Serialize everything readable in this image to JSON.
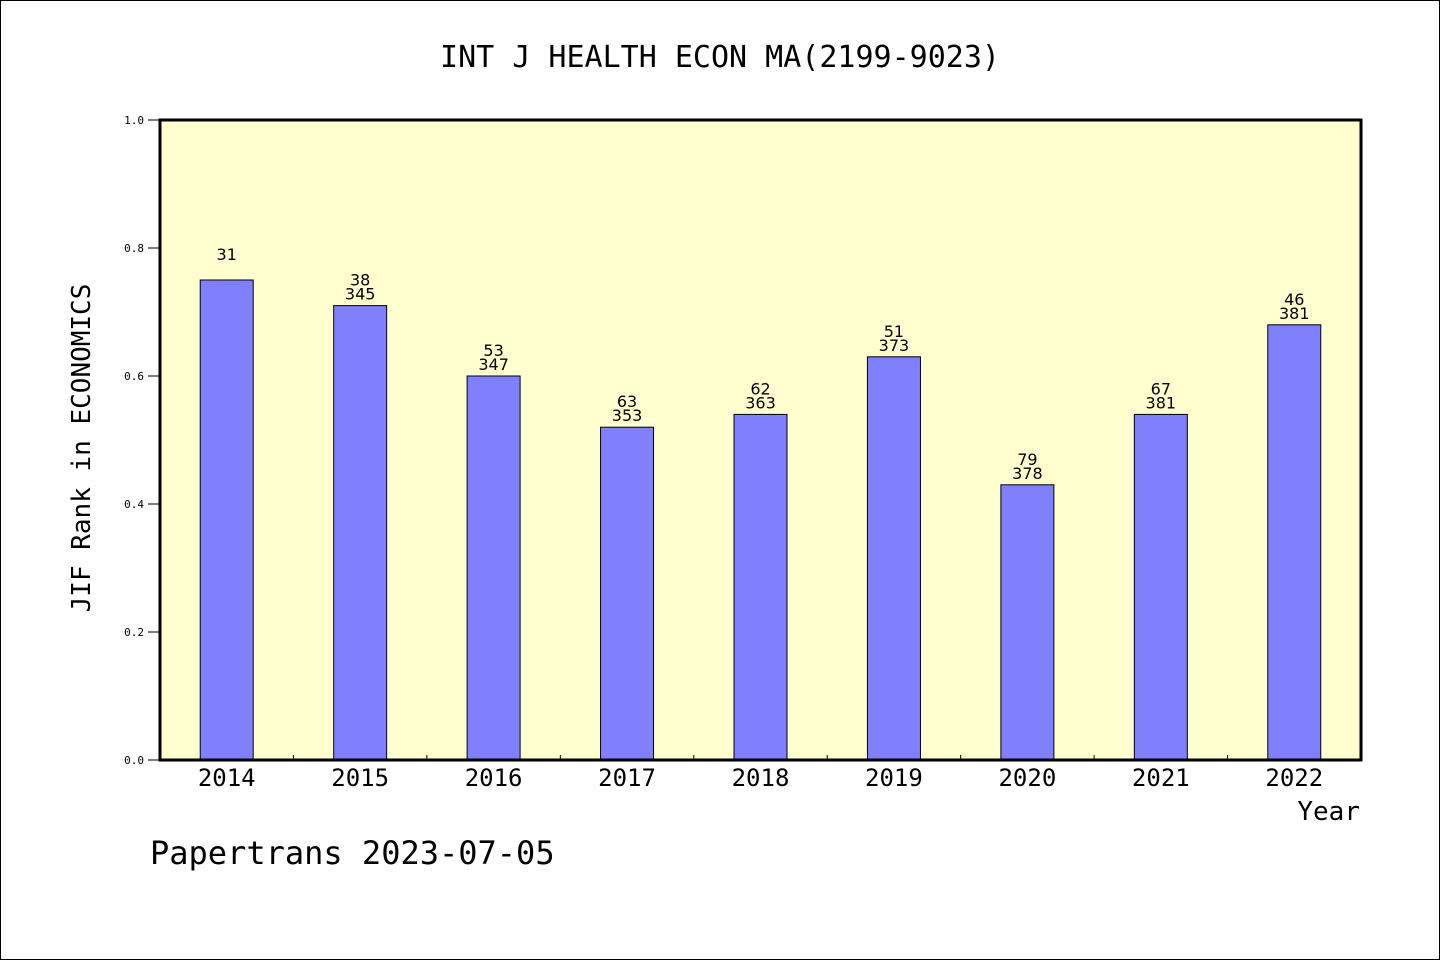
{
  "chart_data": {
    "type": "bar",
    "title": "INT J HEALTH ECON MA(2199-9023)",
    "xlabel": "Year",
    "ylabel": "JIF Rank in ECONOMICS",
    "ylim": [
      0,
      1.0
    ],
    "yticks": [
      "0.0",
      "0.2",
      "0.4",
      "0.6",
      "0.8",
      "1.0"
    ],
    "categories": [
      "2014",
      "2015",
      "2016",
      "2017",
      "2018",
      "2019",
      "2020",
      "2021",
      "2022"
    ],
    "values": [
      0.75,
      0.71,
      0.6,
      0.52,
      0.54,
      0.63,
      0.43,
      0.54,
      0.68
    ],
    "rank_labels": [
      "31",
      "38",
      "53",
      "63",
      "62",
      "51",
      "79",
      "67",
      "46"
    ],
    "total_labels": [
      "",
      "345",
      "347",
      "353",
      "363",
      "373",
      "378",
      "381",
      "381"
    ],
    "grid": false,
    "bar_color": "#8080ff",
    "plot_background": "#ffffd0"
  },
  "footer": {
    "credit": "Papertrans 2023-07-05"
  }
}
